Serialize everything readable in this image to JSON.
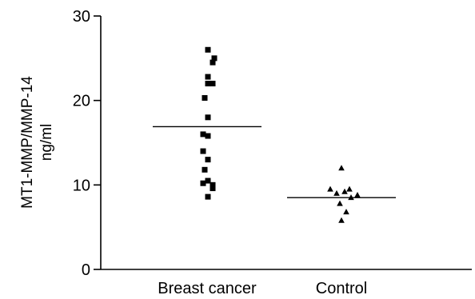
{
  "chart_data": {
    "type": "scatter",
    "ylabel_line1": "MT1-MMP/MMP-14",
    "ylabel_line2": "ng/ml",
    "ylim": [
      0,
      30
    ],
    "yticks": [
      0,
      10,
      20,
      30
    ],
    "categories": [
      "Breast cancer",
      "Control"
    ],
    "series": [
      {
        "category": "Breast cancer",
        "marker": "square",
        "mean": 16.9,
        "values": [
          26.0,
          24.5,
          25.0,
          22.8,
          22.0,
          22.0,
          20.3,
          18.0,
          16.0,
          15.8,
          14.0,
          13.0,
          11.8,
          10.5,
          10.2,
          10.0,
          9.6,
          8.6
        ]
      },
      {
        "category": "Control",
        "marker": "triangle",
        "mean": 8.5,
        "values": [
          12.0,
          9.5,
          9.5,
          9.2,
          9.0,
          8.8,
          8.5,
          7.8,
          6.8,
          5.8
        ]
      }
    ],
    "grid": false,
    "legend": "none"
  }
}
